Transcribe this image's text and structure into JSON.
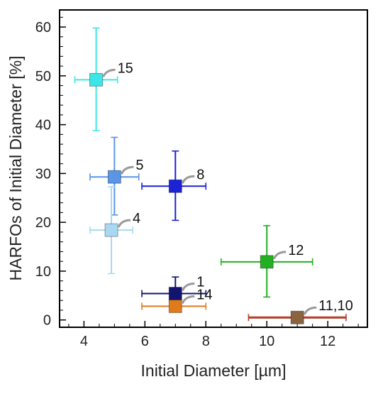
{
  "chart_data": {
    "type": "scatter",
    "xlabel": "Initial Diameter [µm]",
    "ylabel": "HARFOs of Initial Diameter [%]",
    "xlim": [
      3.2,
      13.3
    ],
    "ylim": [
      -1.5,
      63.5
    ],
    "xticks": [
      "4",
      "6",
      "8",
      "10",
      "12"
    ],
    "yticks": [
      "0",
      "10",
      "20",
      "30",
      "40",
      "50",
      "60"
    ],
    "xtick_values": [
      4,
      6,
      8,
      10,
      12
    ],
    "ytick_values": [
      0,
      10,
      20,
      30,
      40,
      50,
      60
    ],
    "grid": false,
    "points": [
      {
        "label": "15",
        "x": 4.4,
        "y": 49.2,
        "xerr": [
          3.7,
          5.1
        ],
        "yerr": [
          38.8,
          59.8
        ],
        "color": "#3de6e6"
      },
      {
        "label": "5",
        "x": 5.0,
        "y": 29.3,
        "xerr": [
          4.2,
          5.8
        ],
        "yerr": [
          21.5,
          37.4
        ],
        "color": "#5a95e6"
      },
      {
        "label": "4",
        "x": 4.9,
        "y": 18.4,
        "xerr": [
          4.2,
          5.6
        ],
        "yerr": [
          9.5,
          27.3
        ],
        "color": "#a8d8f2"
      },
      {
        "label": "8",
        "x": 7.0,
        "y": 27.4,
        "xerr": [
          5.9,
          8.0
        ],
        "yerr": [
          20.4,
          34.6
        ],
        "color": "#1c22d6"
      },
      {
        "label": "12",
        "x": 10.0,
        "y": 11.9,
        "xerr": [
          8.5,
          11.5
        ],
        "yerr": [
          4.7,
          19.3
        ],
        "color": "#22b022"
      },
      {
        "label": "1",
        "x": 7.0,
        "y": 5.4,
        "xerr": [
          5.9,
          8.0
        ],
        "yerr": [
          2.1,
          8.8
        ],
        "color": "#121470"
      },
      {
        "label": "14",
        "x": 7.0,
        "y": 2.8,
        "xerr": [
          5.9,
          8.0
        ],
        "yerr": [
          2.8,
          2.8
        ],
        "color": "#e07b1c"
      },
      {
        "label": "11,10",
        "x": 11.0,
        "y": 0.5,
        "xerr": [
          9.4,
          12.6
        ],
        "yerr": [
          0.5,
          0.5
        ],
        "color": "#8a6440",
        "bar_color": "#b83a26"
      }
    ]
  }
}
